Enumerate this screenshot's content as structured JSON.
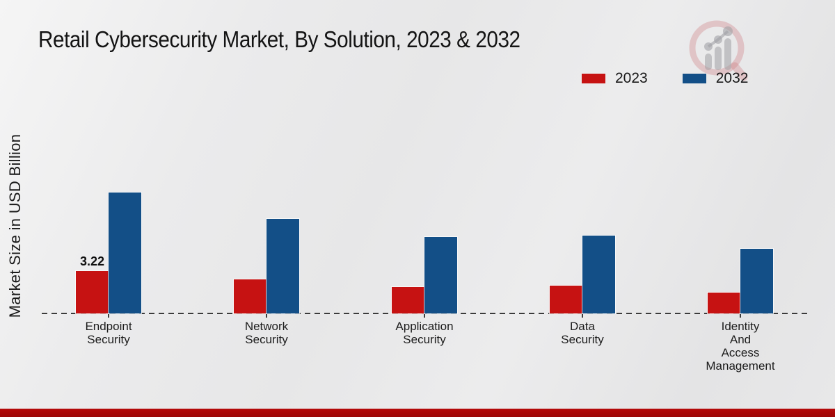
{
  "page": {
    "title": "Retail Cybersecurity Market, By Solution, 2023 & 2032",
    "ylabel": "Market Size in USD Billion"
  },
  "colors": {
    "series_2023": "#c61212",
    "series_2032": "#134f87",
    "footer_bar": "#b50a0a",
    "baseline": "#3b3b3b"
  },
  "legend": [
    {
      "label": "2023",
      "color": "#c61212"
    },
    {
      "label": "2032",
      "color": "#134f87"
    }
  ],
  "watermark": {
    "icon": "magnifier-bar-chart-logo"
  },
  "chart_data": {
    "type": "bar",
    "title": "Retail Cybersecurity Market, By Solution, 2023 & 2032",
    "xlabel": "",
    "ylabel": "Market Size in USD Billion",
    "categories": [
      "Endpoint Security",
      "Network Security",
      "Application Security",
      "Data Security",
      "Identity And Access Management"
    ],
    "series": [
      {
        "name": "2023",
        "color": "#c61212",
        "values": [
          3.22,
          2.6,
          2.0,
          2.1,
          1.6
        ]
      },
      {
        "name": "2032",
        "color": "#134f87",
        "values": [
          9.2,
          7.2,
          5.8,
          5.9,
          4.9
        ]
      }
    ],
    "data_labels": [
      {
        "series": "2023",
        "category": "Endpoint Security",
        "text": "3.22"
      }
    ],
    "ylim": [
      0,
      10
    ],
    "grid": false,
    "y_axis_ticks_visible": false,
    "baseline_style": "dashed",
    "legend_position": "top-right"
  }
}
